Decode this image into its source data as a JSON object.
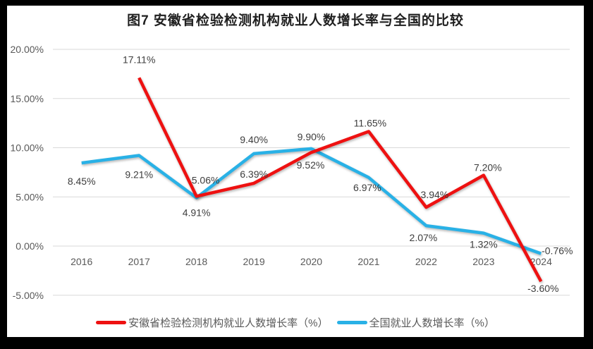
{
  "frame": {
    "border_color": "#000000",
    "background": "#ffffff"
  },
  "chart_data": {
    "type": "line",
    "title": "图7 安徽省检验检测机构就业人数增长率与全国的比较",
    "categories": [
      "2016",
      "2017",
      "2018",
      "2019",
      "2020",
      "2021",
      "2022",
      "2023",
      "2024"
    ],
    "y_ticks": [
      {
        "label": "20.00%",
        "value": 20
      },
      {
        "label": "15.00%",
        "value": 15
      },
      {
        "label": "10.00%",
        "value": 10
      },
      {
        "label": "5.00%",
        "value": 5
      },
      {
        "label": "0.00%",
        "value": 0
      },
      {
        "label": "-5.00%",
        "value": -5
      }
    ],
    "ylim": [
      -5,
      20
    ],
    "grid": true,
    "legend_position": "bottom",
    "series": [
      {
        "key": "anhui",
        "name": "安徽省检验检测机构就业人数增长率（%）",
        "color": "#ee1111",
        "values": [
          null,
          17.11,
          5.06,
          6.39,
          9.52,
          11.65,
          3.94,
          7.2,
          -3.6
        ],
        "point_labels": [
          "",
          "17.11%",
          "5.06%",
          "6.39%",
          "9.52%",
          "11.65%",
          "3.94%",
          "7.20%",
          "-3.60%"
        ],
        "label_offsets": [
          [
            0,
            0
          ],
          [
            0,
            -26
          ],
          [
            13,
            -23
          ],
          [
            0,
            -13
          ],
          [
            -1,
            18
          ],
          [
            2,
            -12
          ],
          [
            12,
            -18
          ],
          [
            6,
            -11
          ],
          [
            3,
            10
          ]
        ]
      },
      {
        "key": "national",
        "name": "全国就业人数增长率（%）",
        "color": "#29b1e6",
        "values": [
          8.45,
          9.21,
          4.91,
          9.4,
          9.9,
          6.97,
          2.07,
          1.32,
          -0.76
        ],
        "point_labels": [
          "8.45%",
          "9.21%",
          "4.91%",
          "9.40%",
          "9.90%",
          "6.97%",
          "2.07%",
          "1.32%",
          "-0.76%"
        ],
        "label_offsets": [
          [
            0,
            26
          ],
          [
            0,
            27
          ],
          [
            0,
            21
          ],
          [
            0,
            -20
          ],
          [
            0,
            -17
          ],
          [
            -2,
            14
          ],
          [
            -4,
            17
          ],
          [
            0,
            16
          ],
          [
            23,
            -4
          ]
        ]
      }
    ],
    "style": {
      "grid_color": "#d9d9d9",
      "axis_text_color": "#595959",
      "data_label_color": "#3d3d3d",
      "title_color": "#1f1f1f"
    }
  }
}
